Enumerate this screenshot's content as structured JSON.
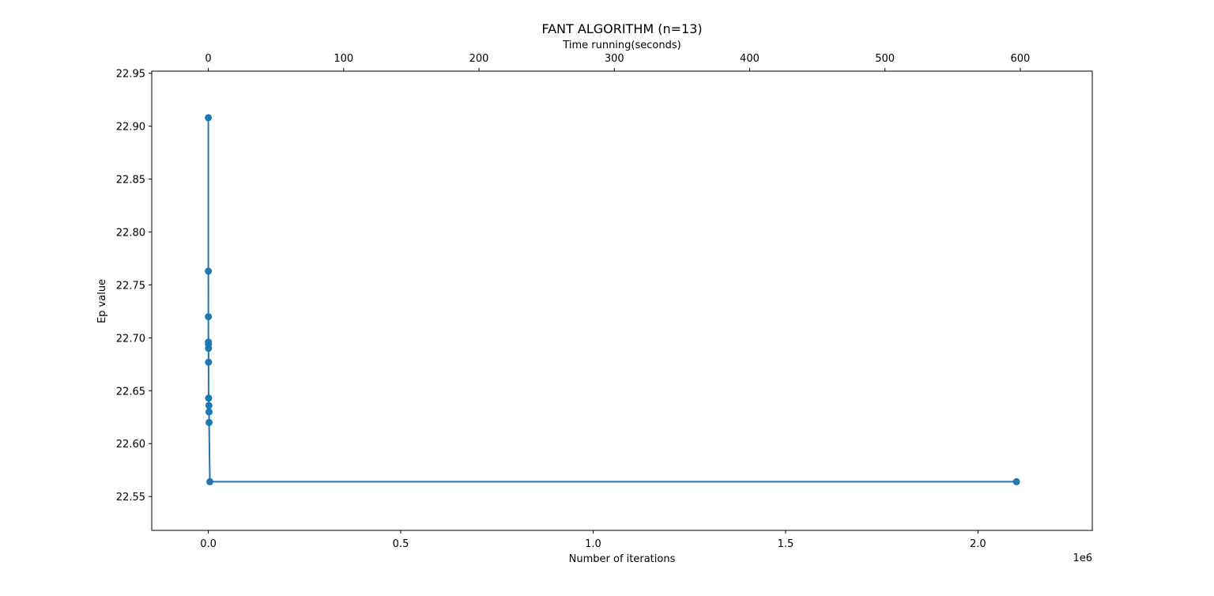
{
  "chart_data": {
    "type": "line",
    "title": "FANT ALGORITHM (n=13)",
    "xlabel": "Number of iterations",
    "x_offset_label": "1e6",
    "x_scale": 1000000,
    "xlim": [
      -0.147,
      2.297
    ],
    "x_ticks": [
      0.0,
      0.5,
      1.0,
      1.5,
      2.0
    ],
    "x_tick_labels": [
      "0.0",
      "0.5",
      "1.0",
      "1.5",
      "2.0"
    ],
    "top_xlabel": "Time running(seconds)",
    "top_xlim": [
      -41.8,
      653.2
    ],
    "top_x_ticks": [
      0,
      100,
      200,
      300,
      400,
      500,
      600
    ],
    "top_x_tick_labels": [
      "0",
      "100",
      "200",
      "300",
      "400",
      "500",
      "600"
    ],
    "ylabel": "Ep value",
    "ylim": [
      22.518,
      22.952
    ],
    "y_ticks": [
      22.55,
      22.6,
      22.65,
      22.7,
      22.75,
      22.8,
      22.85,
      22.9,
      22.95
    ],
    "y_tick_labels": [
      "22.55",
      "22.60",
      "22.65",
      "22.70",
      "22.75",
      "22.80",
      "22.85",
      "22.90",
      "22.95"
    ],
    "grid": false,
    "legend": "none",
    "series": [
      {
        "color": "#1f77b4",
        "marker": "circle",
        "points": [
          {
            "x": 0.0,
            "y": 22.908
          },
          {
            "x": 0.0001,
            "y": 22.763
          },
          {
            "x": 0.0002,
            "y": 22.72
          },
          {
            "x": 0.0003,
            "y": 22.696
          },
          {
            "x": 0.0004,
            "y": 22.694
          },
          {
            "x": 0.0005,
            "y": 22.69
          },
          {
            "x": 0.0006,
            "y": 22.677
          },
          {
            "x": 0.0008,
            "y": 22.643
          },
          {
            "x": 0.0015,
            "y": 22.636
          },
          {
            "x": 0.0018,
            "y": 22.63
          },
          {
            "x": 0.002,
            "y": 22.62
          },
          {
            "x": 0.004,
            "y": 22.564
          },
          {
            "x": 2.1,
            "y": 22.564
          }
        ]
      }
    ]
  }
}
